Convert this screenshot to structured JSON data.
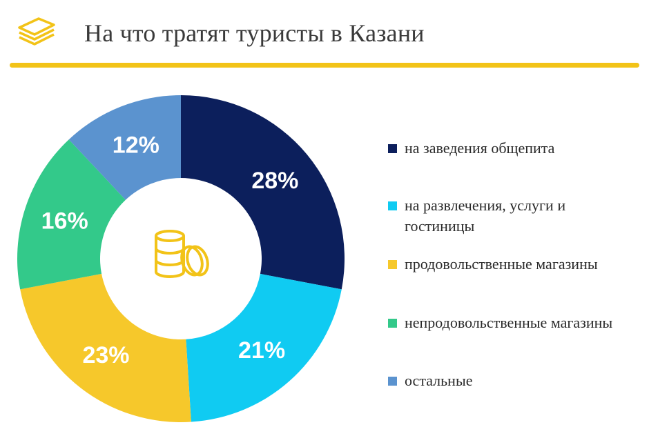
{
  "header": {
    "title": "На что тратят туристы в Казани",
    "icon": "money-stack-icon"
  },
  "colors": {
    "accent": "#f2c318",
    "navy": "#0c1f5c",
    "cyan": "#10cbf2",
    "yellow": "#f6c82b",
    "green": "#33c98a",
    "blue": "#5b93cf"
  },
  "center_icon": "coins-icon",
  "chart_data": {
    "type": "pie",
    "donut": true,
    "categories": [
      "на заведения общепита",
      "на развлечения, услуги и гостиницы",
      "продовольственные магазины",
      "непродовольственные магазины",
      "остальные"
    ],
    "values": [
      28,
      21,
      23,
      16,
      12
    ],
    "value_labels": [
      "28%",
      "21%",
      "23%",
      "16%",
      "12%"
    ],
    "slice_colors": [
      "#0c1f5c",
      "#10cbf2",
      "#f6c82b",
      "#33c98a",
      "#5b93cf"
    ],
    "legend_placement": "right"
  }
}
